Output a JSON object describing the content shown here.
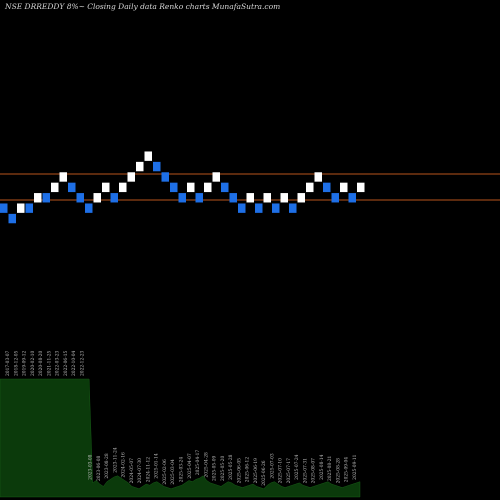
{
  "chart_data": {
    "type": "renko",
    "title": "NSE DRREDDY 8%~ Closing Daily data Renko charts MunafaSutra.com",
    "brick_colors": {
      "up": "#ffffff",
      "down": "#1e6fe6"
    },
    "reference_line_color": "#b8541c",
    "volume_color": "#0b3a0b",
    "reference_levels": [
      1345,
      1315
    ],
    "bricks": [
      {
        "dir": "down",
        "top": 1311,
        "bottom": 1299
      },
      {
        "dir": "down",
        "top": 1299,
        "bottom": 1287
      },
      {
        "dir": "up",
        "top": 1311,
        "bottom": 1299
      },
      {
        "dir": "down",
        "top": 1311,
        "bottom": 1299
      },
      {
        "dir": "up",
        "top": 1323,
        "bottom": 1311
      },
      {
        "dir": "down",
        "top": 1323,
        "bottom": 1311
      },
      {
        "dir": "up",
        "top": 1335,
        "bottom": 1323
      },
      {
        "dir": "up",
        "top": 1347,
        "bottom": 1335
      },
      {
        "dir": "down",
        "top": 1335,
        "bottom": 1323
      },
      {
        "dir": "down",
        "top": 1323,
        "bottom": 1311
      },
      {
        "dir": "down",
        "top": 1311,
        "bottom": 1299
      },
      {
        "dir": "up",
        "top": 1323,
        "bottom": 1311
      },
      {
        "dir": "up",
        "top": 1335,
        "bottom": 1323
      },
      {
        "dir": "down",
        "top": 1323,
        "bottom": 1311
      },
      {
        "dir": "up",
        "top": 1335,
        "bottom": 1323
      },
      {
        "dir": "up",
        "top": 1347,
        "bottom": 1335
      },
      {
        "dir": "up",
        "top": 1359,
        "bottom": 1347
      },
      {
        "dir": "up",
        "top": 1371,
        "bottom": 1359
      },
      {
        "dir": "down",
        "top": 1359,
        "bottom": 1347
      },
      {
        "dir": "down",
        "top": 1347,
        "bottom": 1335
      },
      {
        "dir": "down",
        "top": 1335,
        "bottom": 1323
      },
      {
        "dir": "down",
        "top": 1323,
        "bottom": 1311
      },
      {
        "dir": "up",
        "top": 1335,
        "bottom": 1323
      },
      {
        "dir": "down",
        "top": 1323,
        "bottom": 1311
      },
      {
        "dir": "up",
        "top": 1335,
        "bottom": 1323
      },
      {
        "dir": "up",
        "top": 1347,
        "bottom": 1335
      },
      {
        "dir": "down",
        "top": 1335,
        "bottom": 1323
      },
      {
        "dir": "down",
        "top": 1323,
        "bottom": 1311
      },
      {
        "dir": "down",
        "top": 1311,
        "bottom": 1299
      },
      {
        "dir": "up",
        "top": 1323,
        "bottom": 1311
      },
      {
        "dir": "down",
        "top": 1311,
        "bottom": 1299
      },
      {
        "dir": "up",
        "top": 1323,
        "bottom": 1311
      },
      {
        "dir": "down",
        "top": 1311,
        "bottom": 1299
      },
      {
        "dir": "up",
        "top": 1323,
        "bottom": 1311
      },
      {
        "dir": "down",
        "top": 1311,
        "bottom": 1299
      },
      {
        "dir": "up",
        "top": 1323,
        "bottom": 1311
      },
      {
        "dir": "up",
        "top": 1335,
        "bottom": 1323
      },
      {
        "dir": "up",
        "top": 1347,
        "bottom": 1335
      },
      {
        "dir": "down",
        "top": 1335,
        "bottom": 1323
      },
      {
        "dir": "down",
        "top": 1323,
        "bottom": 1311
      },
      {
        "dir": "up",
        "top": 1335,
        "bottom": 1323
      },
      {
        "dir": "down",
        "top": 1323,
        "bottom": 1311
      },
      {
        "dir": "up",
        "top": 1335,
        "bottom": 1323
      }
    ],
    "volume": [
      100,
      100,
      100,
      100,
      100,
      100,
      100,
      100,
      100,
      100,
      100,
      100,
      100,
      100,
      100,
      100,
      100,
      100,
      100,
      100,
      100,
      100,
      100,
      100,
      100,
      100,
      12,
      14,
      11,
      9,
      13,
      15,
      17,
      18,
      16,
      14,
      12,
      9,
      8,
      7,
      9,
      11,
      10,
      12,
      13,
      11,
      9,
      8,
      7,
      8,
      9,
      10,
      12,
      14,
      13,
      15,
      16,
      18,
      14,
      12,
      11,
      10,
      9,
      11,
      13,
      12,
      10,
      9,
      8,
      9,
      10,
      11,
      9,
      8,
      7,
      10,
      12,
      13,
      11,
      9,
      8,
      9,
      10,
      11,
      12,
      10,
      9,
      8,
      9,
      10,
      11,
      12,
      13,
      11,
      10,
      9,
      8,
      9,
      10,
      11,
      12,
      13
    ],
    "date_labels": [
      "2017-03-07",
      "2018-12-05",
      "2019-09-12",
      "2020-02-10",
      "2020-08-20",
      "2021-11-25",
      "2022-03-23",
      "2022-06-15",
      "2022-10-04",
      "2022-12-23",
      "2023-03-08",
      "2023-06-08",
      "2023-08-28",
      "2023-11-24",
      "2024-02-16",
      "2024-05-07",
      "2024-07-30",
      "2024-11-12",
      "2025-01-14",
      "2025-02-06",
      "2025-03-04",
      "2025-03-24",
      "2025-04-07",
      "2025-04-17",
      "2025-04-28",
      "2025-05-09",
      "2025-05-20",
      "2025-05-28",
      "2025-06-05",
      "2025-06-12",
      "2025-06-19",
      "2025-06-26",
      "2025-07-03",
      "2025-07-10",
      "2025-07-17",
      "2025-07-24",
      "2025-07-31",
      "2025-08-07",
      "2025-08-14",
      "2025-08-21",
      "2025-08-28",
      "2025-09-04",
      "2025-09-11"
    ]
  }
}
